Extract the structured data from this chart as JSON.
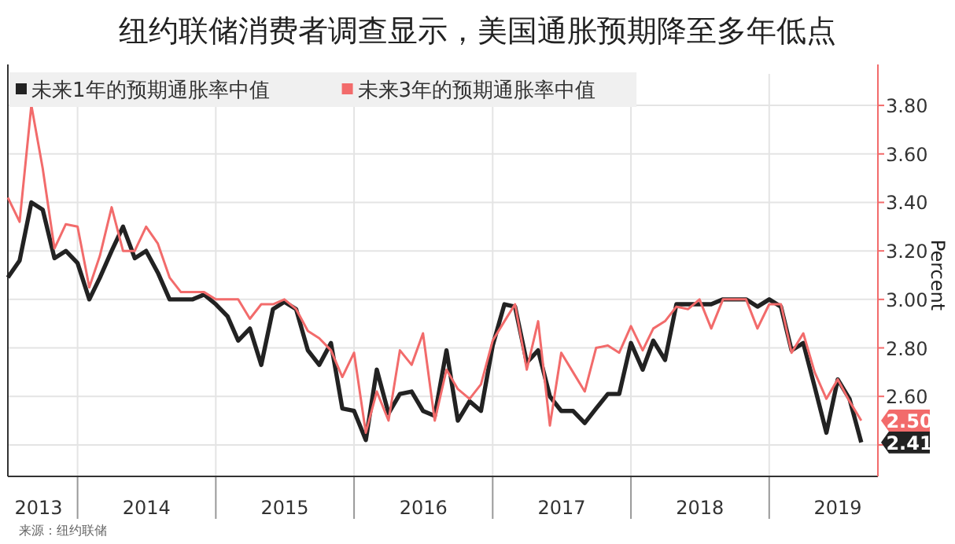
{
  "chart_data": {
    "type": "line",
    "title": "纽约联储消费者调查显示，美国通胀预期降至多年低点",
    "ylabel": "Percent",
    "legend": "top left",
    "grid": true,
    "x": [
      "2013-07",
      "2013-08",
      "2013-09",
      "2013-10",
      "2013-11",
      "2013-12",
      "2014-01",
      "2014-02",
      "2014-03",
      "2014-04",
      "2014-05",
      "2014-06",
      "2014-07",
      "2014-08",
      "2014-09",
      "2014-10",
      "2014-11",
      "2014-12",
      "2015-01",
      "2015-02",
      "2015-03",
      "2015-04",
      "2015-05",
      "2015-06",
      "2015-07",
      "2015-08",
      "2015-09",
      "2015-10",
      "2015-11",
      "2015-12",
      "2016-01",
      "2016-02",
      "2016-03",
      "2016-04",
      "2016-05",
      "2016-06",
      "2016-07",
      "2016-08",
      "2016-09",
      "2016-10",
      "2016-11",
      "2016-12",
      "2017-01",
      "2017-02",
      "2017-03",
      "2017-04",
      "2017-05",
      "2017-06",
      "2017-07",
      "2017-08",
      "2017-09",
      "2017-10",
      "2017-11",
      "2017-12",
      "2018-01",
      "2018-02",
      "2018-03",
      "2018-04",
      "2018-05",
      "2018-06",
      "2018-07",
      "2018-08",
      "2018-09",
      "2018-10",
      "2018-11",
      "2018-12",
      "2019-01",
      "2019-02",
      "2019-03",
      "2019-04",
      "2019-05",
      "2019-06",
      "2019-07",
      "2019-08",
      "2019-09"
    ],
    "series": [
      {
        "name": "未来1年的预期通胀率中值",
        "color": "#222222",
        "values": [
          3.09,
          3.16,
          3.4,
          3.37,
          3.17,
          3.2,
          3.15,
          3.0,
          3.09,
          3.2,
          3.3,
          3.17,
          3.2,
          3.11,
          3.0,
          3.0,
          3.0,
          3.02,
          2.98,
          2.93,
          2.83,
          2.88,
          2.73,
          2.96,
          2.99,
          2.96,
          2.79,
          2.73,
          2.82,
          2.55,
          2.54,
          2.42,
          2.71,
          2.53,
          2.61,
          2.62,
          2.54,
          2.52,
          2.79,
          2.5,
          2.58,
          2.54,
          2.81,
          2.98,
          2.97,
          2.74,
          2.79,
          2.6,
          2.54,
          2.54,
          2.49,
          2.55,
          2.61,
          2.61,
          2.82,
          2.71,
          2.83,
          2.75,
          2.98,
          2.98,
          2.98,
          2.98,
          3.0,
          3.0,
          3.0,
          2.97,
          3.0,
          2.97,
          2.79,
          2.82,
          2.64,
          2.45,
          2.67,
          2.59,
          2.41
        ],
        "value_labels": [
          null,
          null,
          null,
          null,
          null,
          null,
          null,
          null,
          null,
          null,
          null,
          null,
          null,
          null,
          null,
          null,
          null,
          null,
          null,
          null,
          null,
          null,
          null,
          null,
          null,
          null,
          null,
          null,
          null,
          null,
          null,
          null,
          null,
          null,
          null,
          null,
          null,
          null,
          null,
          null,
          null,
          null,
          null,
          null,
          null,
          null,
          null,
          null,
          null,
          null,
          null,
          null,
          null,
          null,
          null,
          null,
          null,
          null,
          null,
          null,
          null,
          null,
          null,
          null,
          null,
          null,
          null,
          null,
          null,
          null,
          null,
          null,
          null,
          null,
          "2.41"
        ]
      },
      {
        "name": "未来3年的预期通胀率中值",
        "color": "#f26b6b",
        "values": [
          3.42,
          3.32,
          3.8,
          3.54,
          3.21,
          3.31,
          3.3,
          3.05,
          3.18,
          3.38,
          3.2,
          3.2,
          3.3,
          3.23,
          3.09,
          3.03,
          3.03,
          3.03,
          3.0,
          3.0,
          3.0,
          2.92,
          2.98,
          2.98,
          3.0,
          2.96,
          2.87,
          2.84,
          2.79,
          2.68,
          2.78,
          2.45,
          2.62,
          2.5,
          2.79,
          2.73,
          2.86,
          2.5,
          2.71,
          2.63,
          2.59,
          2.65,
          2.83,
          2.91,
          2.98,
          2.71,
          2.91,
          2.48,
          2.78,
          2.7,
          2.62,
          2.8,
          2.81,
          2.78,
          2.89,
          2.79,
          2.88,
          2.91,
          2.97,
          2.96,
          3.0,
          2.88,
          3.0,
          3.0,
          3.0,
          2.88,
          2.98,
          2.98,
          2.78,
          2.86,
          2.7,
          2.59,
          2.67,
          2.58,
          2.5
        ],
        "value_labels": [
          null,
          null,
          null,
          null,
          null,
          null,
          null,
          null,
          null,
          null,
          null,
          null,
          null,
          null,
          null,
          null,
          null,
          null,
          null,
          null,
          null,
          null,
          null,
          null,
          null,
          null,
          null,
          null,
          null,
          null,
          null,
          null,
          null,
          null,
          null,
          null,
          null,
          null,
          null,
          null,
          null,
          null,
          null,
          null,
          null,
          null,
          null,
          null,
          null,
          null,
          null,
          null,
          null,
          null,
          null,
          null,
          null,
          null,
          null,
          null,
          null,
          null,
          null,
          null,
          null,
          null,
          null,
          null,
          null,
          null,
          null,
          null,
          null,
          null,
          "2.50"
        ]
      }
    ],
    "xlim": [
      "2013-07",
      "2019-10-15"
    ],
    "xticks": [
      {
        "value": "2013-09-20",
        "label": "2013"
      },
      {
        "value": "2014-01-01",
        "label": null
      },
      {
        "value": "2014-07-02",
        "label": "2014"
      },
      {
        "value": "2015-01-01",
        "label": null
      },
      {
        "value": "2015-07-02",
        "label": "2015"
      },
      {
        "value": "2016-01-01",
        "label": null
      },
      {
        "value": "2016-07-02",
        "label": "2016"
      },
      {
        "value": "2017-01-01",
        "label": null
      },
      {
        "value": "2017-07-02",
        "label": "2017"
      },
      {
        "value": "2018-01-01",
        "label": null
      },
      {
        "value": "2018-07-02",
        "label": "2018"
      },
      {
        "value": "2019-01-01",
        "label": null
      },
      {
        "value": "2019-07-01",
        "label": "2019"
      }
    ],
    "ylim": [
      2.27,
      3.93
    ],
    "yticks": [
      {
        "value": 2.4,
        "label": null
      },
      {
        "value": 2.6,
        "label": "2.60"
      },
      {
        "value": 2.8,
        "label": "2.80"
      },
      {
        "value": 3.0,
        "label": "3.00"
      },
      {
        "value": 3.2,
        "label": "3.20"
      },
      {
        "value": 3.4,
        "label": "3.40"
      },
      {
        "value": 3.6,
        "label": "3.60"
      },
      {
        "value": 3.8,
        "label": "3.80"
      }
    ],
    "annotations": [
      "来源：纽约联储"
    ]
  }
}
